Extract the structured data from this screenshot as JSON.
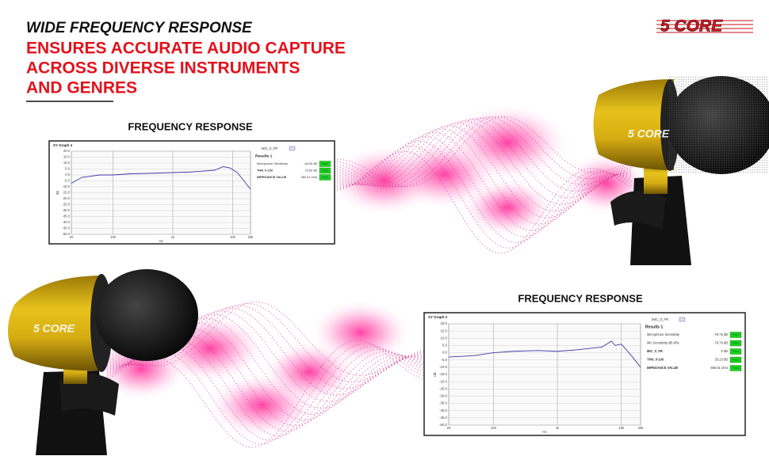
{
  "header": {
    "line1": "WIDE FREQUENCY RESPONSE",
    "line2": "ENSURES ACCURATE AUDIO CAPTURE",
    "line3": "ACROSS DIVERSE INSTRUMENTS",
    "line4": "AND GENRES"
  },
  "logo": "5 CORE",
  "mic_brand": "5 CORE",
  "graphs": [
    {
      "heading": "FREQUENCY RESPONSE",
      "chart": {
        "type": "line",
        "title": "XY Graph 4",
        "xlabel": "Hz",
        "ylabel": "dB",
        "log_x": true,
        "grid": true,
        "color": "#3a3aa8",
        "x": [
          20,
          30,
          60,
          100,
          200,
          500,
          1000,
          2000,
          5000,
          7000,
          9000,
          12000,
          15000,
          20000
        ],
        "values": [
          -7,
          -2,
          0,
          0,
          1,
          1.5,
          2,
          2.5,
          4,
          7,
          6,
          2,
          -4,
          -12
        ],
        "xlim": [
          20,
          20000
        ],
        "xticks": [
          20,
          100,
          {
            "value": 1000,
            "label": "1k"
          },
          {
            "value": 10000,
            "label": "10k"
          },
          {
            "value": 20000,
            "label": "20k"
          }
        ],
        "ylim": [
          -50,
          20
        ],
        "yticks": [
          {
            "value": 20,
            "label": "20.0"
          },
          {
            "value": 15,
            "label": "15.0"
          },
          {
            "value": 10,
            "label": "10.0"
          },
          {
            "value": 5,
            "label": "5.0"
          },
          {
            "value": 0,
            "label": "0.0"
          },
          {
            "value": -5,
            "label": "-5.0"
          },
          {
            "value": -10,
            "label": "-10.0"
          },
          {
            "value": -15,
            "label": "-15.0"
          },
          {
            "value": -20,
            "label": "-20.0"
          },
          {
            "value": -25,
            "label": "-25.0"
          },
          {
            "value": -30,
            "label": "-30.0"
          },
          {
            "value": -35,
            "label": "-35.0"
          },
          {
            "value": -40,
            "label": "-40.0"
          },
          {
            "value": -45,
            "label": "-45.0"
          },
          {
            "value": -50,
            "label": "-50.0"
          }
        ]
      },
      "legend": "MIC_0_FR",
      "results_title": "Results 1",
      "results": [
        {
          "label": "Microphone Sensitivity",
          "value": "-48.99 dB",
          "status": "Pass"
        },
        {
          "label": "THN_0-100",
          "value": "76.82 dB",
          "status": "Pass"
        },
        {
          "label": "IMPEDANCE VALUE",
          "value": "382.01 ohm",
          "status": "Pass"
        }
      ]
    },
    {
      "heading": "FREQUENCY RESPONSE",
      "chart": {
        "type": "line",
        "title": "XY Graph 2",
        "xlabel": "Hz",
        "ylabel": "dB",
        "log_x": true,
        "grid": true,
        "color": "#3a3aa8",
        "x": [
          20,
          50,
          100,
          200,
          500,
          1000,
          2000,
          5000,
          7000,
          8000,
          10000,
          12000,
          15000,
          20000
        ],
        "values": [
          -3,
          -2,
          0,
          1,
          1.5,
          1,
          2,
          4,
          8,
          5,
          6,
          2,
          -3,
          -10
        ],
        "xlim": [
          20,
          20000
        ],
        "xticks": [
          20,
          100,
          {
            "value": 1000,
            "label": "1k"
          },
          {
            "value": 10000,
            "label": "10k"
          },
          {
            "value": 20000,
            "label": "20k"
          }
        ],
        "ylim": [
          -50,
          20
        ],
        "yticks": [
          {
            "value": 20,
            "label": "20.0"
          },
          {
            "value": 15,
            "label": "15.0"
          },
          {
            "value": 10,
            "label": "10.0"
          },
          {
            "value": 5,
            "label": "5.0"
          },
          {
            "value": 0,
            "label": "0.0"
          },
          {
            "value": -5,
            "label": "-5.0"
          },
          {
            "value": -10,
            "label": "-10.0"
          },
          {
            "value": -15,
            "label": "-15.0"
          },
          {
            "value": -20,
            "label": "-20.0"
          },
          {
            "value": -25,
            "label": "-25.0"
          },
          {
            "value": -30,
            "label": "-30.0"
          },
          {
            "value": -35,
            "label": "-35.0"
          },
          {
            "value": -40,
            "label": "-40.0"
          },
          {
            "value": -45,
            "label": "-45.0"
          },
          {
            "value": -50,
            "label": "-50.0"
          }
        ]
      },
      "legend": "MIC_0_FR",
      "results_title": "Results 1",
      "results": [
        {
          "label": "Microphone Sensitivity",
          "value": "-79.76 dB",
          "status": "Pass"
        },
        {
          "label": "Mic Sensitivity dB dPa",
          "value": "-79.76 dB",
          "status": "Pass"
        },
        {
          "label": "MIC_0_FR",
          "value": "0 dB",
          "status": "Pass"
        },
        {
          "label": "THN_0-100",
          "value": "33.23 dB",
          "status": "Pass"
        },
        {
          "label": "IMPEDANCE VALUE",
          "value": "556.61 ohm",
          "status": "Pass"
        }
      ]
    }
  ]
}
